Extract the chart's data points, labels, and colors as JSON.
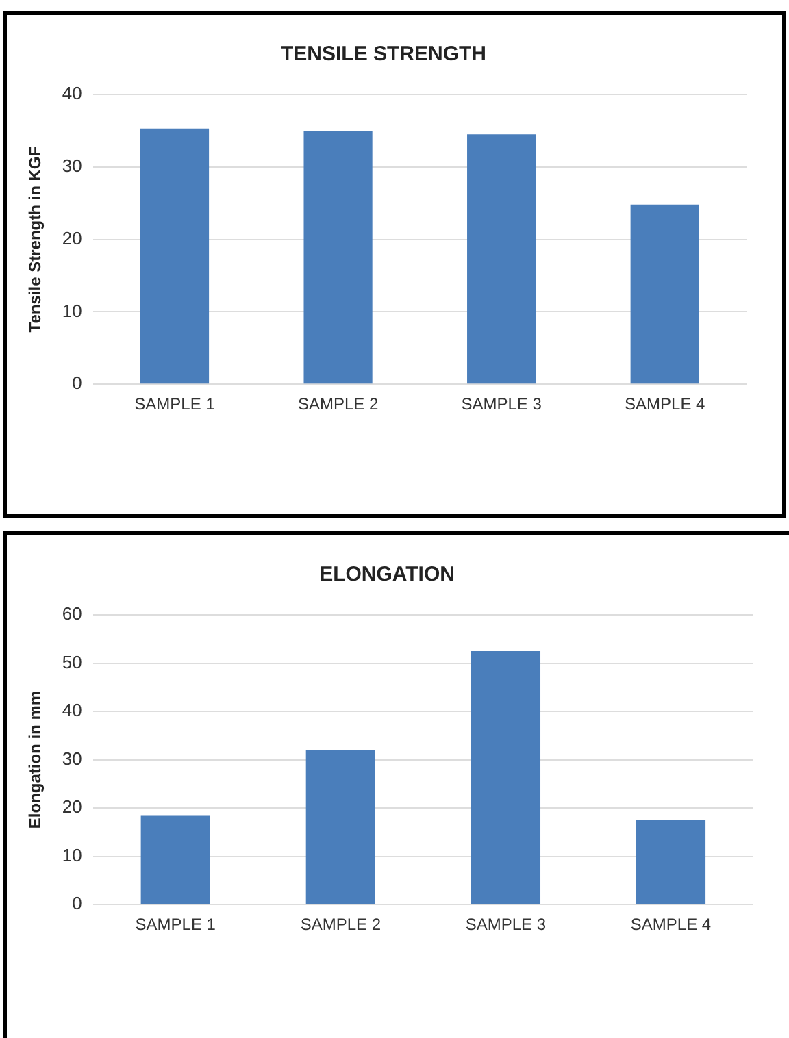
{
  "chart_data": [
    {
      "type": "bar",
      "title": "TENSILE STRENGTH",
      "ylabel": "Tensile Strength in KGF",
      "categories": [
        "SAMPLE 1",
        "SAMPLE 2",
        "SAMPLE 3",
        "SAMPLE 4"
      ],
      "values": [
        35.3,
        34.9,
        34.5,
        24.8
      ],
      "color": "#4a7ebb",
      "ylim": [
        0,
        40
      ],
      "yticks": [
        0,
        10,
        20,
        30,
        40
      ],
      "grid": "y"
    },
    {
      "type": "bar",
      "title": "ELONGATION",
      "ylabel": "Elongation in mm",
      "categories": [
        "SAMPLE 1",
        "SAMPLE 2",
        "SAMPLE 3",
        "SAMPLE 4"
      ],
      "values": [
        18.4,
        32.0,
        52.5,
        17.5
      ],
      "color": "#4a7ebb",
      "ylim": [
        0,
        60
      ],
      "yticks": [
        0,
        10,
        20,
        30,
        40,
        50,
        60
      ],
      "grid": "y"
    }
  ]
}
